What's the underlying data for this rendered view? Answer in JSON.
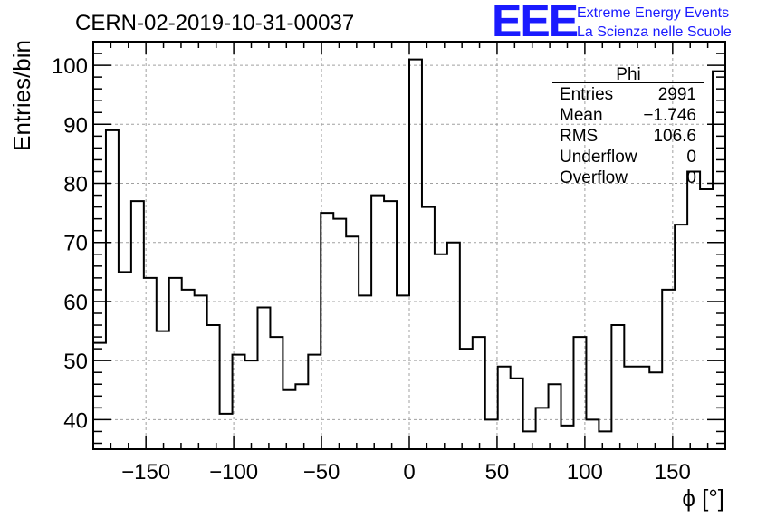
{
  "chart_data": {
    "type": "histogram",
    "title": "CERN-02-2019-10-31-00037",
    "xlabel": "ϕ [°]",
    "ylabel": "Entries/bin",
    "xlim": [
      -180,
      180
    ],
    "ylim": [
      35,
      104
    ],
    "bin_width": 7.2,
    "grid": true,
    "x_ticks": [
      -150,
      -100,
      -50,
      0,
      50,
      100,
      150
    ],
    "x_tick_labels": [
      "−150",
      "−100",
      "−50",
      "0",
      "50",
      "100",
      "150"
    ],
    "y_ticks": [
      40,
      50,
      60,
      70,
      80,
      90,
      100
    ],
    "y_tick_labels": [
      "40",
      "50",
      "60",
      "70",
      "80",
      "90",
      "100"
    ],
    "values": [
      53,
      89,
      65,
      77,
      64,
      55,
      64,
      62,
      61,
      56,
      41,
      51,
      50,
      59,
      54,
      45,
      46,
      51,
      75,
      74,
      71,
      61,
      78,
      77,
      61,
      101,
      76,
      68,
      70,
      52,
      54,
      40,
      49,
      47,
      38,
      42,
      46,
      39,
      54,
      40,
      38,
      56,
      49,
      49,
      48,
      62,
      73,
      82,
      79,
      99
    ],
    "stats_box": {
      "title": "Phi",
      "rows": [
        {
          "label": "Entries",
          "value": "2991"
        },
        {
          "label": "Mean",
          "value": "−1.746"
        },
        {
          "label": "RMS",
          "value": "106.6"
        },
        {
          "label": "Underflow",
          "value": "0"
        },
        {
          "label": "Overflow",
          "value": "0"
        }
      ]
    }
  },
  "branding": {
    "logo": "EEE",
    "line1": "Extreme Energy Events",
    "line2": "La Scienza nelle Scuole"
  },
  "colors": {
    "line": "#000000",
    "grid": "#a0a0a0",
    "brand": "#1a1aff"
  }
}
